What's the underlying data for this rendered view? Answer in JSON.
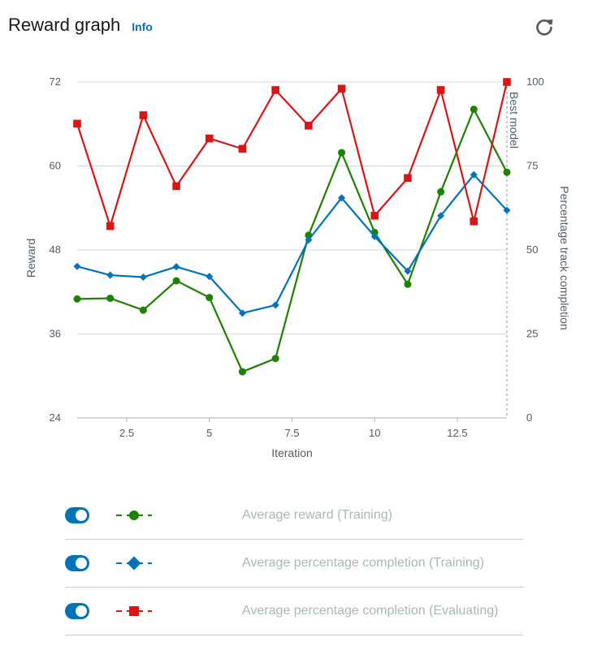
{
  "header": {
    "title": "Reward graph",
    "info_label": "Info"
  },
  "icons": {
    "refresh": "refresh-icon"
  },
  "colors": {
    "reward": "#1d8102",
    "training": "#0073bb",
    "evaluating": "#d91515",
    "toggle": "#0073bb"
  },
  "chart_data": {
    "type": "line",
    "xlabel": "Iteration",
    "ylabel": "Reward",
    "y2label": "Percentage track completion",
    "xlim": [
      1,
      14
    ],
    "ylim": [
      24,
      72
    ],
    "y2lim": [
      0,
      100
    ],
    "xticks": [
      "2.5",
      "5",
      "7.5",
      "10",
      "12.5"
    ],
    "yticks": [
      "24",
      "36",
      "48",
      "60",
      "72"
    ],
    "y2ticks": [
      "0",
      "25",
      "50",
      "75",
      "100"
    ],
    "grid": true,
    "annotation": {
      "label": "Best model",
      "x": 14
    },
    "series": [
      {
        "name": "Average reward (Training)",
        "axis": "left",
        "marker": "circle",
        "x": [
          1,
          2,
          3,
          4,
          5,
          6,
          7,
          8,
          9,
          10,
          11,
          12,
          13,
          14
        ],
        "values": [
          41.0,
          41.1,
          39.4,
          43.6,
          41.2,
          30.6,
          32.5,
          50.1,
          61.9,
          50.5,
          43.1,
          56.3,
          68.1,
          59.1
        ]
      },
      {
        "name": "Average percentage completion (Training)",
        "axis": "right",
        "marker": "diamond",
        "x": [
          1,
          2,
          3,
          4,
          5,
          6,
          7,
          8,
          9,
          10,
          11,
          12,
          13,
          14
        ],
        "values": [
          45.1,
          42.5,
          41.9,
          45.0,
          42.1,
          31.2,
          33.6,
          53.0,
          65.5,
          54.0,
          43.7,
          60.2,
          72.4,
          61.8
        ]
      },
      {
        "name": "Average percentage completion (Evaluating)",
        "axis": "right",
        "marker": "square",
        "x": [
          1,
          2,
          3,
          4,
          5,
          6,
          7,
          8,
          9,
          10,
          11,
          12,
          13,
          14
        ],
        "values": [
          87.6,
          57.1,
          90.1,
          69.0,
          83.2,
          80.1,
          97.6,
          87.0,
          98.0,
          60.2,
          71.4,
          97.6,
          58.5,
          100.0
        ]
      }
    ]
  },
  "legend": [
    {
      "label": "Average reward (Training)",
      "color": "#1d8102",
      "marker": "circle"
    },
    {
      "label": "Average percentage completion (Training)",
      "color": "#0073bb",
      "marker": "diamond"
    },
    {
      "label": "Average percentage completion (Evaluating)",
      "color": "#d91515",
      "marker": "square"
    }
  ]
}
